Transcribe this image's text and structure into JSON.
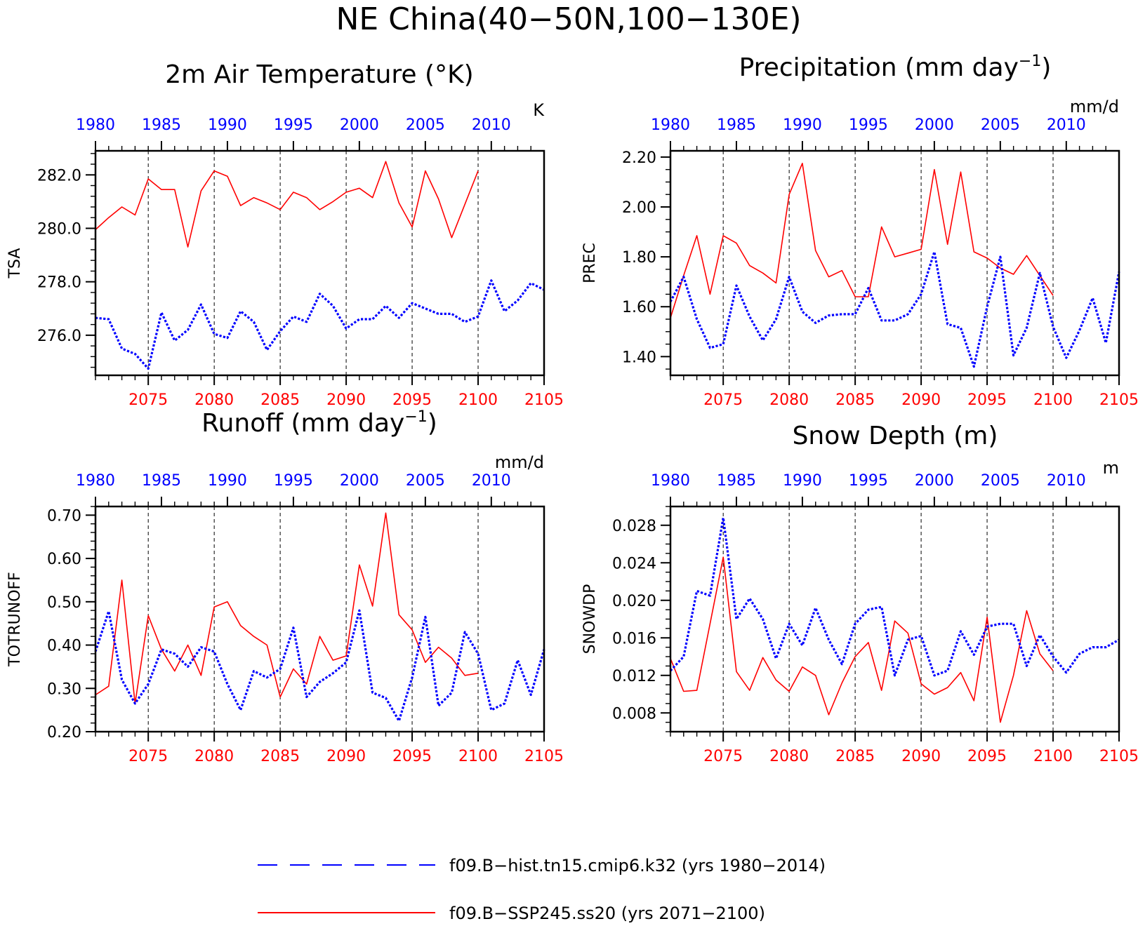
{
  "title": "NE China(40−50N,100−130E)",
  "colors": {
    "hist": "#0000ff",
    "ssp": "#ff0000",
    "axis": "#000000"
  },
  "legend": {
    "hist_label": "f09.B−hist.tn15.cmip6.k32 (yrs 1980−2014)",
    "ssp_label": "f09.B−SSP245.ss20 (yrs 2071−2100)"
  },
  "chart_data": [
    {
      "type": "line",
      "title_main": "2m Air Temperature (°K)",
      "title_sup": "",
      "title_tail": "",
      "ylabel": "TSA",
      "units": "K",
      "ylim": [
        274.5,
        282.9
      ],
      "yticks": [
        276.0,
        278.0,
        280.0,
        282.0
      ],
      "ytick_labels": [
        "276.0",
        "278.0",
        "280.0",
        "282.0"
      ],
      "minor_step": 0.4,
      "hist_axis_labels": [
        "1980",
        "1985",
        "1990",
        "1995",
        "2000",
        "2005",
        "2010"
      ],
      "ssp_axis_labels": [
        "2075",
        "2080",
        "2085",
        "2090",
        "2095",
        "2100",
        "2105"
      ],
      "series": [
        {
          "name": "f09.B−hist.tn15.cmip6.k32 (yrs 1980−2014)",
          "x_start": 1980,
          "values": [
            276.65,
            276.6,
            275.5,
            275.3,
            274.75,
            276.85,
            275.8,
            276.2,
            277.15,
            276.05,
            275.9,
            276.9,
            276.5,
            275.45,
            276.15,
            276.7,
            276.5,
            277.55,
            277.1,
            276.25,
            276.6,
            276.6,
            277.1,
            276.65,
            277.2,
            277.0,
            276.8,
            276.8,
            276.5,
            276.7,
            278.05,
            276.9,
            277.3,
            277.95,
            277.7
          ]
        },
        {
          "name": "f09.B−SSP245.ss20 (yrs 2071−2100)",
          "x_start": 2071,
          "values": [
            279.95,
            280.4,
            280.8,
            280.5,
            281.85,
            281.45,
            281.45,
            279.3,
            281.4,
            282.15,
            281.95,
            280.85,
            281.15,
            280.95,
            280.7,
            281.35,
            281.15,
            280.7,
            281.0,
            281.35,
            281.5,
            281.15,
            282.5,
            280.95,
            280.05,
            282.15,
            281.1,
            279.65,
            280.9,
            282.15
          ]
        }
      ]
    },
    {
      "type": "line",
      "title_main": "Precipitation (mm day",
      "title_sup": "−1",
      "title_tail": ")",
      "ylabel": "PREC",
      "units": "mm/d",
      "ylim": [
        1.325,
        2.225
      ],
      "yticks": [
        1.4,
        1.6,
        1.8,
        2.0,
        2.2
      ],
      "ytick_labels": [
        "1.40",
        "1.60",
        "1.80",
        "2.00",
        "2.20"
      ],
      "minor_step": 0.05,
      "hist_axis_labels": [
        "1980",
        "1985",
        "1990",
        "1995",
        "2000",
        "2005",
        "2010"
      ],
      "ssp_axis_labels": [
        "2075",
        "2080",
        "2085",
        "2090",
        "2095",
        "2100",
        "2105"
      ],
      "series": [
        {
          "name": "f09.B−hist.tn15.cmip6.k32 (yrs 1980−2014)",
          "x_start": 1980,
          "values": [
            1.62,
            1.72,
            1.55,
            1.435,
            1.45,
            1.685,
            1.56,
            1.465,
            1.55,
            1.72,
            1.58,
            1.535,
            1.565,
            1.57,
            1.57,
            1.675,
            1.545,
            1.545,
            1.57,
            1.65,
            1.82,
            1.53,
            1.515,
            1.36,
            1.6,
            1.8,
            1.405,
            1.515,
            1.735,
            1.52,
            1.395,
            1.505,
            1.635,
            1.455,
            1.74
          ]
        },
        {
          "name": "f09.B−SSP245.ss20 (yrs 2071−2100)",
          "x_start": 2071,
          "values": [
            1.555,
            1.725,
            1.885,
            1.65,
            1.885,
            1.855,
            1.765,
            1.735,
            1.695,
            2.05,
            2.175,
            1.825,
            1.72,
            1.745,
            1.64,
            1.64,
            1.92,
            1.8,
            1.815,
            1.83,
            2.15,
            1.85,
            2.14,
            1.82,
            1.795,
            1.755,
            1.73,
            1.805,
            1.725,
            1.645
          ]
        }
      ]
    },
    {
      "type": "line",
      "title_main": "Runoff (mm day",
      "title_sup": "−1",
      "title_tail": ")",
      "ylabel": "TOTRUNOFF",
      "units": "mm/d",
      "ylim": [
        0.2,
        0.72
      ],
      "yticks": [
        0.2,
        0.3,
        0.4,
        0.5,
        0.6,
        0.7
      ],
      "ytick_labels": [
        "0.20",
        "0.30",
        "0.40",
        "0.50",
        "0.60",
        "0.70"
      ],
      "minor_step": 0.02,
      "hist_axis_labels": [
        "1980",
        "1985",
        "1990",
        "1995",
        "2000",
        "2005",
        "2010"
      ],
      "ssp_axis_labels": [
        "2075",
        "2080",
        "2085",
        "2090",
        "2095",
        "2100",
        "2105"
      ],
      "series": [
        {
          "name": "f09.B−hist.tn15.cmip6.k32 (yrs 1980−2014)",
          "x_start": 1980,
          "values": [
            0.385,
            0.478,
            0.32,
            0.265,
            0.31,
            0.39,
            0.38,
            0.35,
            0.395,
            0.385,
            0.31,
            0.25,
            0.34,
            0.325,
            0.345,
            0.44,
            0.28,
            0.315,
            0.335,
            0.36,
            0.48,
            0.29,
            0.278,
            0.225,
            0.325,
            0.465,
            0.26,
            0.29,
            0.43,
            0.38,
            0.25,
            0.265,
            0.365,
            0.285,
            0.39
          ]
        },
        {
          "name": "f09.B−SSP245.ss20 (yrs 2071−2100)",
          "x_start": 2071,
          "values": [
            0.285,
            0.305,
            0.55,
            0.265,
            0.468,
            0.39,
            0.34,
            0.4,
            0.33,
            0.488,
            0.5,
            0.445,
            0.42,
            0.4,
            0.28,
            0.345,
            0.31,
            0.42,
            0.365,
            0.375,
            0.585,
            0.49,
            0.705,
            0.47,
            0.435,
            0.36,
            0.395,
            0.37,
            0.33,
            0.335
          ]
        }
      ]
    },
    {
      "type": "line",
      "title_main": "Snow Depth (m)",
      "title_sup": "",
      "title_tail": "",
      "ylabel": "SNOWDP",
      "units": "m",
      "ylim": [
        0.006,
        0.03
      ],
      "yticks": [
        0.008,
        0.012,
        0.016,
        0.02,
        0.024,
        0.028
      ],
      "ytick_labels": [
        "0.008",
        "0.012",
        "0.016",
        "0.020",
        "0.024",
        "0.028"
      ],
      "minor_step": 0.001,
      "hist_axis_labels": [
        "1980",
        "1985",
        "1990",
        "1995",
        "2000",
        "2005",
        "2010"
      ],
      "ssp_axis_labels": [
        "2075",
        "2080",
        "2085",
        "2090",
        "2095",
        "2100",
        "2105"
      ],
      "series": [
        {
          "name": "f09.B−hist.tn15.cmip6.k32 (yrs 1980−2014)",
          "x_start": 1980,
          "values": [
            0.0125,
            0.014,
            0.021,
            0.0205,
            0.0288,
            0.018,
            0.0202,
            0.018,
            0.0138,
            0.0175,
            0.0152,
            0.0192,
            0.0158,
            0.0132,
            0.0175,
            0.019,
            0.0193,
            0.012,
            0.0158,
            0.0162,
            0.012,
            0.0125,
            0.0167,
            0.0142,
            0.0172,
            0.0175,
            0.0175,
            0.013,
            0.0163,
            0.014,
            0.0123,
            0.0143,
            0.015,
            0.015,
            0.0158
          ]
        },
        {
          "name": "f09.B−SSP245.ss20 (yrs 2071−2100)",
          "x_start": 2071,
          "values": [
            0.0138,
            0.0103,
            0.0104,
            0.0175,
            0.0246,
            0.0124,
            0.0104,
            0.0139,
            0.0115,
            0.0103,
            0.0129,
            0.012,
            0.0078,
            0.0112,
            0.014,
            0.0155,
            0.0104,
            0.0178,
            0.0165,
            0.0111,
            0.01,
            0.0107,
            0.0123,
            0.0093,
            0.0182,
            0.007,
            0.012,
            0.0189,
            0.0143,
            0.0125
          ]
        }
      ]
    }
  ]
}
